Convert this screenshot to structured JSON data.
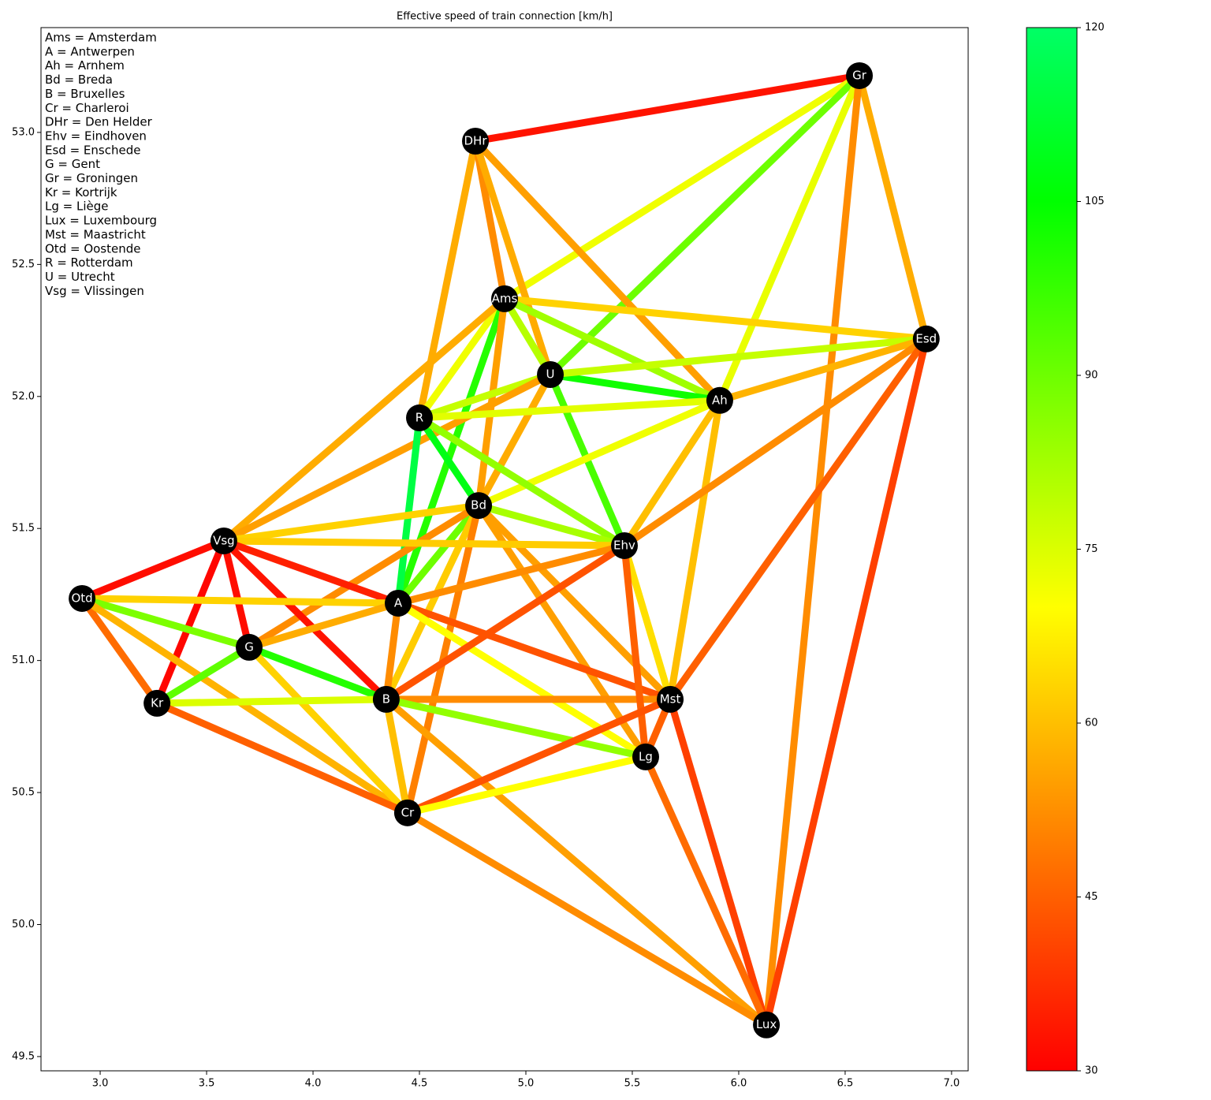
{
  "chart_data": {
    "type": "network",
    "title": "Effective speed of train connection [km/h]",
    "legend_lines": [
      "Ams = Amsterdam",
      "A = Antwerpen",
      "Ah = Arnhem",
      "Bd = Breda",
      "B = Bruxelles",
      "Cr = Charleroi",
      "DHr = Den Helder",
      "Ehv = Eindhoven",
      "Esd = Enschede",
      "G = Gent",
      "Gr = Groningen",
      "Kr = Kortrijk",
      "Lg = Liège",
      "Lux = Luxembourg",
      "Mst = Maastricht",
      "Otd = Oostende",
      "R = Rotterdam",
      "U = Utrecht",
      "Vsg = Vlissingen"
    ],
    "xlim": [
      2.722,
      7.078
    ],
    "ylim": [
      49.446,
      53.397
    ],
    "xticks": [
      {
        "value": 3,
        "label": "3.0"
      },
      3.5,
      {
        "value": 4,
        "label": "4.0"
      },
      4.5,
      {
        "value": 5,
        "label": "5.0"
      },
      5.5,
      {
        "value": 6,
        "label": "6.0"
      },
      6.5,
      {
        "value": 7,
        "label": "7.0"
      }
    ],
    "yticks": [
      49.5,
      {
        "value": 50,
        "label": "50.0"
      },
      50.5,
      {
        "value": 51,
        "label": "51.0"
      },
      51.5,
      {
        "value": 52,
        "label": "52.0"
      },
      52.5,
      {
        "value": 53,
        "label": "53.0"
      }
    ],
    "nodes": [
      {
        "label": "Gr",
        "x": 6.567,
        "y": 53.215
      },
      {
        "label": "DHr",
        "x": 4.763,
        "y": 52.967
      },
      {
        "label": "Ams",
        "x": 4.9,
        "y": 52.37
      },
      {
        "label": "Esd",
        "x": 6.881,
        "y": 52.218
      },
      {
        "label": "U",
        "x": 5.115,
        "y": 52.083
      },
      {
        "label": "Ah",
        "x": 5.911,
        "y": 51.985
      },
      {
        "label": "R",
        "x": 4.5,
        "y": 51.919
      },
      {
        "label": "Bd",
        "x": 4.778,
        "y": 51.587
      },
      {
        "label": "Ehv",
        "x": 5.463,
        "y": 51.435
      },
      {
        "label": "Vsg",
        "x": 3.581,
        "y": 51.453
      },
      {
        "label": "Otd",
        "x": 2.915,
        "y": 51.235
      },
      {
        "label": "A",
        "x": 4.4,
        "y": 51.217
      },
      {
        "label": "G",
        "x": 3.7,
        "y": 51.05
      },
      {
        "label": "Kr",
        "x": 3.267,
        "y": 50.838
      },
      {
        "label": "B",
        "x": 4.344,
        "y": 50.853
      },
      {
        "label": "Mst",
        "x": 5.678,
        "y": 50.853
      },
      {
        "label": "Lg",
        "x": 5.563,
        "y": 50.635
      },
      {
        "label": "Cr",
        "x": 4.444,
        "y": 50.423
      },
      {
        "label": "Lux",
        "x": 6.13,
        "y": 49.62
      }
    ],
    "edges": [
      [
        "DHr",
        "Gr",
        33
      ],
      [
        "Gr",
        "Ams",
        72
      ],
      [
        "Gr",
        "U",
        90
      ],
      [
        "Gr",
        "Ah",
        73
      ],
      [
        "Gr",
        "Esd",
        57
      ],
      [
        "Gr",
        "Lux",
        52
      ],
      [
        "DHr",
        "R",
        57
      ],
      [
        "DHr",
        "Ams",
        52
      ],
      [
        "DHr",
        "U",
        57
      ],
      [
        "DHr",
        "Ah",
        55
      ],
      [
        "Ams",
        "Esd",
        63
      ],
      [
        "Ams",
        "Ah",
        83
      ],
      [
        "Ams",
        "U",
        80
      ],
      [
        "Ams",
        "R",
        72
      ],
      [
        "Ams",
        "A",
        100
      ],
      [
        "Ams",
        "Vsg",
        57
      ],
      [
        "Ams",
        "Bd",
        55
      ],
      [
        "U",
        "Ah",
        103
      ],
      [
        "U",
        "Esd",
        78
      ],
      [
        "U",
        "R",
        78
      ],
      [
        "U",
        "Ehv",
        95
      ],
      [
        "U",
        "Bd",
        57
      ],
      [
        "U",
        "Vsg",
        55
      ],
      [
        "Ah",
        "R",
        74
      ],
      [
        "Ah",
        "Esd",
        58
      ],
      [
        "Ah",
        "Bd",
        72
      ],
      [
        "Ah",
        "Ehv",
        60
      ],
      [
        "Ah",
        "Mst",
        60
      ],
      [
        "Esd",
        "Ehv",
        52
      ],
      [
        "Esd",
        "Mst",
        45
      ],
      [
        "Esd",
        "Lux",
        40
      ],
      [
        "R",
        "Bd",
        108
      ],
      [
        "R",
        "A",
        115
      ],
      [
        "R",
        "Ehv",
        85
      ],
      [
        "Bd",
        "Ehv",
        82
      ],
      [
        "Bd",
        "Vsg",
        63
      ],
      [
        "Bd",
        "A",
        90
      ],
      [
        "Bd",
        "G",
        52
      ],
      [
        "Bd",
        "B",
        62
      ],
      [
        "Bd",
        "Cr",
        50
      ],
      [
        "Bd",
        "Mst",
        55
      ],
      [
        "Bd",
        "Lg",
        55
      ],
      [
        "Vsg",
        "Ehv",
        62
      ],
      [
        "Vsg",
        "A",
        35
      ],
      [
        "Vsg",
        "B",
        33
      ],
      [
        "Vsg",
        "G",
        32
      ],
      [
        "Vsg",
        "Kr",
        31
      ],
      [
        "Vsg",
        "Otd",
        32
      ],
      [
        "Otd",
        "A",
        63
      ],
      [
        "Otd",
        "G",
        88
      ],
      [
        "Otd",
        "Kr",
        47
      ],
      [
        "Otd",
        "Cr",
        58
      ],
      [
        "G",
        "Kr",
        92
      ],
      [
        "G",
        "B",
        100
      ],
      [
        "G",
        "A",
        57
      ],
      [
        "G",
        "Cr",
        63
      ],
      [
        "Kr",
        "B",
        75
      ],
      [
        "Kr",
        "Cr",
        45
      ],
      [
        "A",
        "Ehv",
        52
      ],
      [
        "A",
        "Mst",
        43
      ],
      [
        "A",
        "Lg",
        70
      ],
      [
        "A",
        "B",
        52
      ],
      [
        "B",
        "Ehv",
        43
      ],
      [
        "B",
        "Mst",
        52
      ],
      [
        "B",
        "Lg",
        85
      ],
      [
        "B",
        "Cr",
        60
      ],
      [
        "B",
        "Lux",
        55
      ],
      [
        "Ehv",
        "Mst",
        65
      ],
      [
        "Ehv",
        "Lg",
        45
      ],
      [
        "Mst",
        "Lg",
        45
      ],
      [
        "Mst",
        "Cr",
        43
      ],
      [
        "Mst",
        "Lux",
        40
      ],
      [
        "Lg",
        "Lux",
        47
      ],
      [
        "Lg",
        "Cr",
        70
      ],
      [
        "Cr",
        "Lux",
        52
      ]
    ],
    "colormap": [
      [
        30,
        "#ff0000"
      ],
      [
        70,
        "#ffff00"
      ],
      [
        105,
        "#00ff00"
      ],
      [
        120,
        "#00ff66"
      ]
    ],
    "clim": [
      30,
      120
    ],
    "cticks": [
      30,
      45,
      60,
      75,
      90,
      105,
      120
    ],
    "node_color": "#000000"
  }
}
